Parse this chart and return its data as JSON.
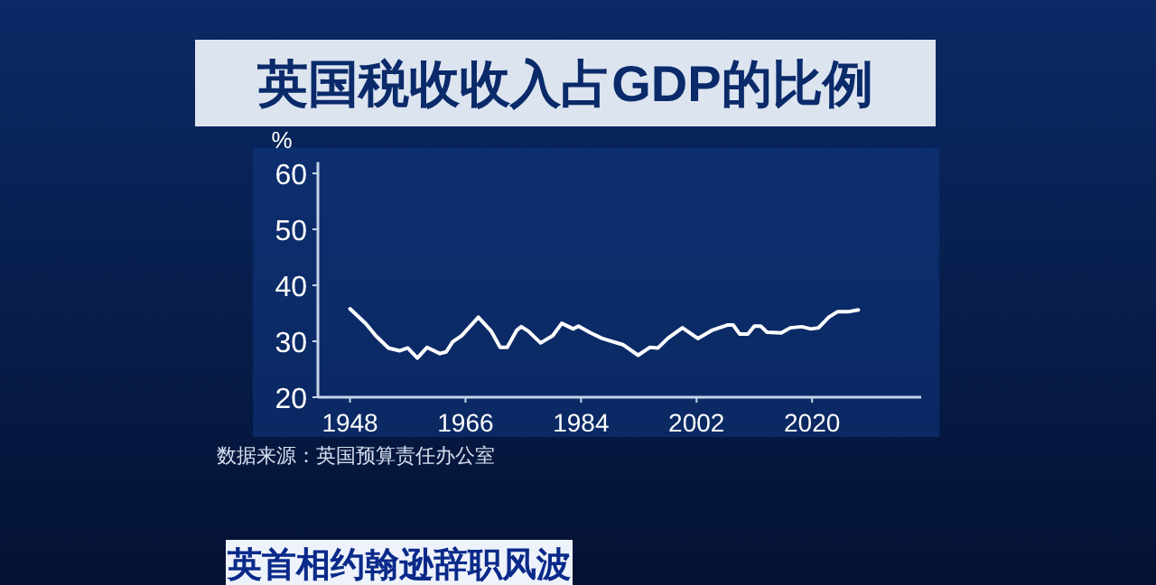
{
  "chart_data": {
    "type": "line",
    "title": "英国税收收入占GDP的比例",
    "ylabel": "%",
    "annotations": [
      "数据来源：英国预算责任办公室",
      "英首相约翰逊辞职风波"
    ],
    "series": [
      {
        "color": "#ffffff",
        "x": [
          1948,
          1950.5,
          1952,
          1954,
          1955.7,
          1957,
          1958.5,
          1960,
          1962,
          1963,
          1964,
          1965.4,
          1968,
          1970,
          1971.4,
          1972.5,
          1974,
          1974.7,
          1975.8,
          1977.7,
          1979.6,
          1981,
          1982.8,
          1983.6,
          1985.5,
          1987.3,
          1990.5,
          1992.9,
          1994.7,
          1996,
          1997.5,
          1999.8,
          2002.2,
          2004.5,
          2006.8,
          2007.7,
          2008.7,
          2010,
          2011,
          2012,
          2013,
          2015.2,
          2016.6,
          2018.4,
          2019.8,
          2021,
          2022.6,
          2024,
          2025.8,
          2027.2
        ],
        "values": [
          35.8,
          33.1,
          31.0,
          28.8,
          28.3,
          28.8,
          27.0,
          28.9,
          27.8,
          28.1,
          29.9,
          31.0,
          34.3,
          31.8,
          28.9,
          28.9,
          32.0,
          32.6,
          31.8,
          29.7,
          31.0,
          33.2,
          32.2,
          32.7,
          31.5,
          30.5,
          29.4,
          27.5,
          28.9,
          28.8,
          30.5,
          32.4,
          30.5,
          32.0,
          32.9,
          32.9,
          31.3,
          31.3,
          32.7,
          32.7,
          31.6,
          31.5,
          32.4,
          32.6,
          32.2,
          32.4,
          34.3,
          35.3,
          35.3,
          35.6
        ]
      }
    ],
    "xlim": [
      1943,
      2037
    ],
    "ylim": [
      20,
      62
    ],
    "xticks": [
      1948,
      1966,
      1984,
      2002,
      2020
    ],
    "yticks": [
      20,
      30,
      40,
      50,
      60
    ],
    "grid": false,
    "marker": "none",
    "line_style": "solid"
  }
}
